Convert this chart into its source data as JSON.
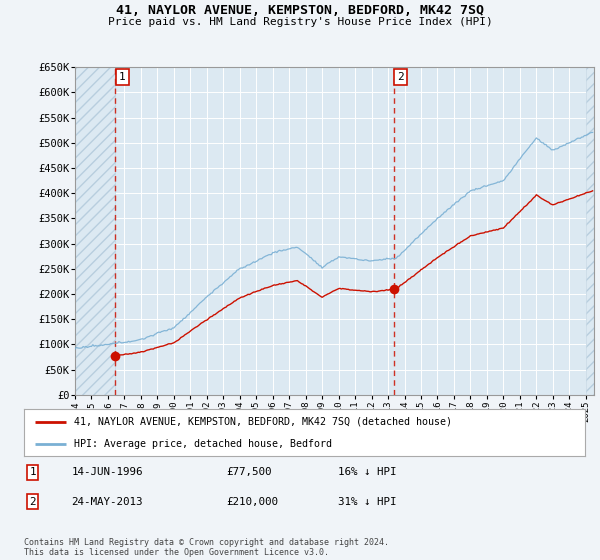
{
  "title": "41, NAYLOR AVENUE, KEMPSTON, BEDFORD, MK42 7SQ",
  "subtitle": "Price paid vs. HM Land Registry's House Price Index (HPI)",
  "ylabel_ticks": [
    "£0",
    "£50K",
    "£100K",
    "£150K",
    "£200K",
    "£250K",
    "£300K",
    "£350K",
    "£400K",
    "£450K",
    "£500K",
    "£550K",
    "£600K",
    "£650K"
  ],
  "ytick_vals": [
    0,
    50000,
    100000,
    150000,
    200000,
    250000,
    300000,
    350000,
    400000,
    450000,
    500000,
    550000,
    600000,
    650000
  ],
  "purchase1_date": "14-JUN-1996",
  "purchase1_price": 77500,
  "purchase1_label": "£77,500",
  "purchase1_pct": "16% ↓ HPI",
  "purchase1_year": 1996.45,
  "purchase2_date": "24-MAY-2013",
  "purchase2_price": 210000,
  "purchase2_label": "£210,000",
  "purchase2_pct": "31% ↓ HPI",
  "purchase2_year": 2013.38,
  "legend_property": "41, NAYLOR AVENUE, KEMPSTON, BEDFORD, MK42 7SQ (detached house)",
  "legend_hpi": "HPI: Average price, detached house, Bedford",
  "footnote": "Contains HM Land Registry data © Crown copyright and database right 2024.\nThis data is licensed under the Open Government Licence v3.0.",
  "bg_color": "#f0f4f8",
  "plot_bg": "#dce9f2",
  "hpi_color": "#7ab0d4",
  "price_color": "#cc1100",
  "grid_color": "#ffffff",
  "xmin": 1994,
  "xmax": 2025.5,
  "ymin": 0,
  "ymax": 650000
}
